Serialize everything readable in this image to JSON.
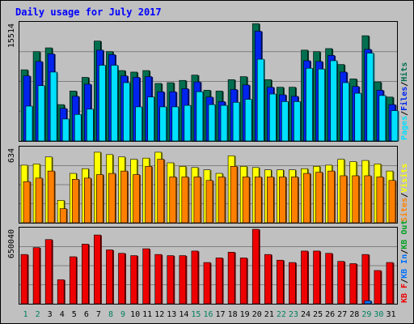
{
  "title": "Daily usage for July 2017",
  "colors": {
    "background": "#ffffff",
    "frame_bg": "#c0c0c0",
    "title": "#0000ff",
    "hits": "#006f4f",
    "files": "#0024ee",
    "pages": "#00e0ff",
    "visits": "#ffff00",
    "sites": "#ff8000",
    "kb_f": "#ee0000",
    "kb_in": "#0070ff",
    "kb_out": "#00a020"
  },
  "chart_data": [
    {
      "type": "bar",
      "name": "hits-files-pages",
      "categories": [
        "1",
        "2",
        "3",
        "4",
        "5",
        "6",
        "7",
        "8",
        "9",
        "10",
        "11",
        "12",
        "13",
        "14",
        "15",
        "16",
        "17",
        "18",
        "19",
        "20",
        "21",
        "22",
        "23",
        "24",
        "25",
        "26",
        "27",
        "28",
        "29",
        "30",
        "31"
      ],
      "ylim": [
        0,
        15514
      ],
      "y_tick_label": "15514",
      "legend": [
        "Pages",
        "/",
        "Files",
        "/",
        "Hits"
      ],
      "legend_position": "right",
      "series": [
        {
          "name": "Hits",
          "color": "#006f4f",
          "values": [
            9400,
            11800,
            12300,
            4800,
            6600,
            8400,
            13200,
            11800,
            9300,
            9100,
            9300,
            7600,
            7700,
            8000,
            8700,
            6700,
            6600,
            8100,
            8500,
            15500,
            8100,
            7100,
            7100,
            12000,
            11800,
            12200,
            10100,
            8200,
            13900,
            7800,
            5800
          ]
        },
        {
          "name": "Files",
          "color": "#0024ee",
          "values": [
            8600,
            10500,
            11500,
            4300,
            5900,
            7500,
            12000,
            11400,
            8600,
            8400,
            8500,
            6500,
            6500,
            6900,
            7800,
            5800,
            5200,
            6800,
            7400,
            14500,
            7100,
            6100,
            5900,
            10600,
            10500,
            11300,
            9100,
            7200,
            12100,
            6700,
            4800
          ]
        },
        {
          "name": "Pages",
          "color": "#00e0ff",
          "values": [
            4600,
            7300,
            9100,
            2900,
            3500,
            4200,
            10000,
            10000,
            7700,
            4500,
            5800,
            4500,
            4500,
            4700,
            6500,
            4800,
            4700,
            5100,
            5500,
            10800,
            6200,
            5200,
            5200,
            9600,
            9500,
            10600,
            7700,
            6300,
            11600,
            6000,
            4000
          ]
        }
      ]
    },
    {
      "type": "bar",
      "name": "visits-sites",
      "categories": [
        "1",
        "2",
        "3",
        "4",
        "5",
        "6",
        "7",
        "8",
        "9",
        "10",
        "11",
        "12",
        "13",
        "14",
        "15",
        "16",
        "17",
        "18",
        "19",
        "20",
        "21",
        "22",
        "23",
        "24",
        "25",
        "26",
        "27",
        "28",
        "29",
        "30",
        "31"
      ],
      "ylim": [
        0,
        634
      ],
      "y_tick_label": "634",
      "legend": [
        "Sites",
        "/",
        "Visits"
      ],
      "legend_position": "right",
      "series": [
        {
          "name": "Visits",
          "color": "#ffff00",
          "values": [
            490,
            500,
            560,
            190,
            420,
            460,
            600,
            580,
            560,
            540,
            550,
            600,
            510,
            480,
            470,
            450,
            420,
            570,
            480,
            470,
            450,
            450,
            450,
            460,
            480,
            490,
            540,
            520,
            530,
            500,
            440
          ]
        },
        {
          "name": "Sites",
          "color": "#ff8000",
          "values": [
            350,
            380,
            440,
            120,
            370,
            380,
            410,
            420,
            440,
            410,
            480,
            540,
            390,
            390,
            390,
            360,
            390,
            480,
            390,
            390,
            390,
            390,
            390,
            420,
            430,
            440,
            400,
            400,
            400,
            390,
            360
          ]
        }
      ]
    },
    {
      "type": "bar",
      "name": "kbf-kbin-kbout",
      "categories": [
        "1",
        "2",
        "3",
        "4",
        "5",
        "6",
        "7",
        "8",
        "9",
        "10",
        "11",
        "12",
        "13",
        "14",
        "15",
        "16",
        "17",
        "18",
        "19",
        "20",
        "21",
        "22",
        "23",
        "24",
        "25",
        "26",
        "27",
        "28",
        "29",
        "30",
        "31"
      ],
      "ylim": [
        0,
        650040
      ],
      "y_tick_label": "650040",
      "legend": [
        "KB F",
        "/",
        "KB In",
        "/",
        "KB Out"
      ],
      "legend_position": "right",
      "series": [
        {
          "name": "KB F",
          "color": "#ee0000",
          "values": [
            430000,
            490000,
            560000,
            210000,
            410000,
            520000,
            600000,
            470000,
            440000,
            420000,
            480000,
            430000,
            420000,
            420000,
            460000,
            360000,
            400000,
            450000,
            400000,
            650000,
            430000,
            380000,
            360000,
            460000,
            460000,
            440000,
            370000,
            350000,
            430000,
            290000,
            360000
          ]
        },
        {
          "name": "KB In",
          "color": "#0070ff",
          "values": [
            0,
            0,
            0,
            0,
            0,
            0,
            0,
            0,
            0,
            0,
            0,
            0,
            0,
            0,
            0,
            0,
            0,
            0,
            0,
            0,
            0,
            0,
            0,
            0,
            0,
            0,
            0,
            0,
            26000,
            0,
            0
          ]
        }
      ]
    }
  ],
  "x_labels": [
    {
      "text": "1",
      "weekend": true
    },
    {
      "text": "2",
      "weekend": true
    },
    {
      "text": "3",
      "weekend": false
    },
    {
      "text": "4",
      "weekend": false
    },
    {
      "text": "5",
      "weekend": false
    },
    {
      "text": "6",
      "weekend": false
    },
    {
      "text": "7",
      "weekend": false
    },
    {
      "text": "8",
      "weekend": true
    },
    {
      "text": "9",
      "weekend": true
    },
    {
      "text": "10",
      "weekend": false
    },
    {
      "text": "11",
      "weekend": false
    },
    {
      "text": "12",
      "weekend": false
    },
    {
      "text": "13",
      "weekend": false
    },
    {
      "text": "14",
      "weekend": false
    },
    {
      "text": "15",
      "weekend": true
    },
    {
      "text": "16",
      "weekend": true
    },
    {
      "text": "17",
      "weekend": false
    },
    {
      "text": "18",
      "weekend": false
    },
    {
      "text": "19",
      "weekend": false
    },
    {
      "text": "20",
      "weekend": false
    },
    {
      "text": "21",
      "weekend": false
    },
    {
      "text": "22",
      "weekend": true
    },
    {
      "text": "23",
      "weekend": true
    },
    {
      "text": "24",
      "weekend": false
    },
    {
      "text": "25",
      "weekend": false
    },
    {
      "text": "26",
      "weekend": false
    },
    {
      "text": "27",
      "weekend": false
    },
    {
      "text": "28",
      "weekend": false
    },
    {
      "text": "29",
      "weekend": true
    },
    {
      "text": "30",
      "weekend": true
    },
    {
      "text": "31",
      "weekend": false
    }
  ],
  "x_label_colors": {
    "weekday": "#000000",
    "weekend": "#00805f"
  }
}
